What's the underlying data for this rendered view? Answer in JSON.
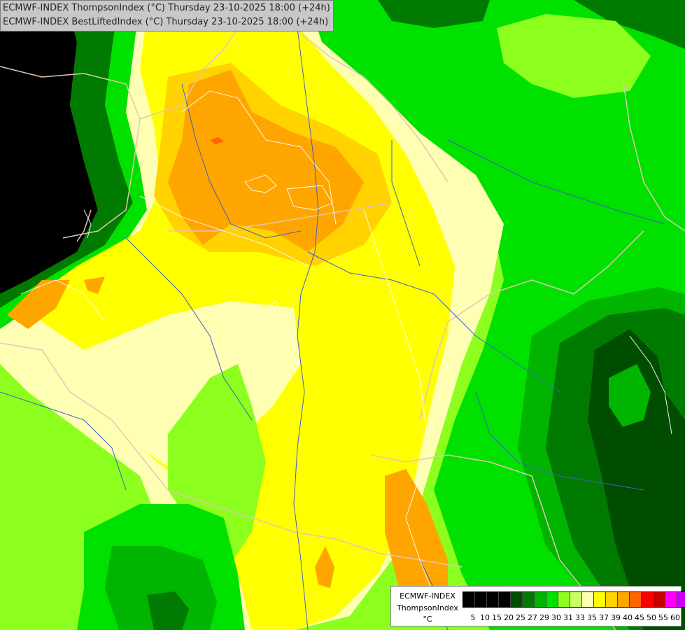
{
  "title": {
    "line1": "ECMWF-INDEX ThompsonIndex (°C) Thursday 23-10-2025 18:00 (+24h)",
    "line2": "ECMWF-INDEX BestLiftedIndex (°C) Thursday 23-10-2025 18:00 (+24h)"
  },
  "legend": {
    "model": "ECMWF-INDEX",
    "parameter": "ThompsonIndex",
    "unit": "°C",
    "ticks": [
      "5",
      "10",
      "15",
      "20",
      "25",
      "27",
      "29",
      "30",
      "31",
      "33",
      "35",
      "37",
      "39",
      "40",
      "45",
      "50",
      "55",
      "60"
    ],
    "colors": [
      "#000000",
      "#000000",
      "#000000",
      "#000000",
      "#004d00",
      "#007a00",
      "#00b400",
      "#00e100",
      "#8cff1e",
      "#c8ff64",
      "#ffffb4",
      "#ffff00",
      "#ffd200",
      "#ffa500",
      "#ff6400",
      "#ff0000",
      "#c80000",
      "#ff00ff",
      "#c800ff",
      "#8c00ff",
      "#0000ff"
    ]
  },
  "map_colors": {
    "background": "#000000",
    "very_dark_green": "#004d00",
    "dark_green": "#007a00",
    "green": "#00b400",
    "bright_green": "#00e100",
    "lime": "#8cff1e",
    "pale_yellow_green": "#c8ff64",
    "pale_yellow": "#ffffb4",
    "yellow": "#ffff00",
    "light_orange": "#ffd200",
    "orange": "#ffa500",
    "red_orange": "#ff6400",
    "border_color": "#e0c8b4",
    "river_color": "#4060c0",
    "contour_color": "#ffffff"
  }
}
